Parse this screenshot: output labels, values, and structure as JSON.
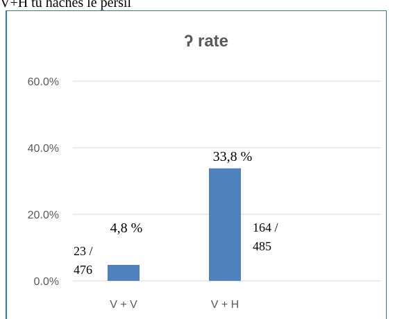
{
  "header": {
    "text": "V+H      tu haches le persil"
  },
  "chart_data": {
    "type": "bar",
    "title": "ʔ rate",
    "categories": [
      "V + V",
      "V + H"
    ],
    "values": [
      4.8,
      33.8
    ],
    "value_labels": [
      "4,8 %",
      "33,8 %"
    ],
    "color": "#4f81bd",
    "ylim": [
      0,
      60
    ],
    "yticks": [
      {
        "value": 0,
        "label": "0.0%"
      },
      {
        "value": 20,
        "label": "20.0%"
      },
      {
        "value": 40,
        "label": "40.0%"
      },
      {
        "value": 60,
        "label": "60.0%"
      }
    ],
    "grid": true,
    "annotations": [
      [
        "23 /",
        "476"
      ],
      [
        "164 /",
        "485"
      ]
    ]
  }
}
